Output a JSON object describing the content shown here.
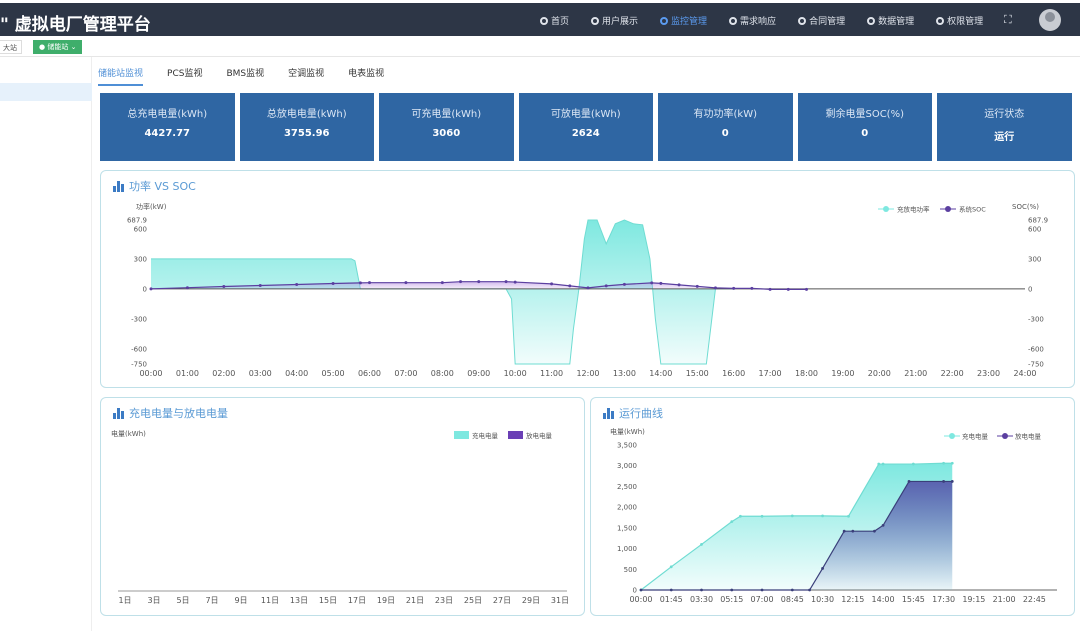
{
  "header": {
    "title": "\" 虚拟电厂管理平台",
    "nav": [
      {
        "label": "首页"
      },
      {
        "label": "用户展示"
      },
      {
        "label": "监控管理",
        "active": true
      },
      {
        "label": "需求响应"
      },
      {
        "label": "合同管理"
      },
      {
        "label": "数据管理"
      },
      {
        "label": "权限管理"
      }
    ],
    "fullscreen_icon": "expand-icon"
  },
  "tagbar": {
    "station_select": "大站",
    "station_tag": "储能站"
  },
  "tabs": [
    {
      "label": "储能站监视",
      "active": true
    },
    {
      "label": "PCS监视"
    },
    {
      "label": "BMS监视"
    },
    {
      "label": "空调监视"
    },
    {
      "label": "电表监视"
    }
  ],
  "cards": [
    {
      "label": "总充电电量(kWh)",
      "value": "4427.77"
    },
    {
      "label": "总放电电量(kWh)",
      "value": "3755.96"
    },
    {
      "label": "可充电量(kWh)",
      "value": "3060"
    },
    {
      "label": "可放电量(kWh)",
      "value": "2624"
    },
    {
      "label": "有功功率(kW)",
      "value": "0"
    },
    {
      "label": "剩余电量SOC(%)",
      "value": "0"
    },
    {
      "label": "运行状态",
      "value": "运行"
    }
  ],
  "colors": {
    "header": "#2d3646",
    "card": "#2f66a3",
    "charge": "#7ee8e0",
    "discharge": "#5b3fa0",
    "accent": "#5a9ad4"
  },
  "chart_data": [
    {
      "title": "功率 VS SOC",
      "type": "area",
      "ylabel_left": "功率(kW)",
      "ylabel_right": "SOC(%)",
      "ylim": [
        -750,
        687.9
      ],
      "yticks": [
        "687.9",
        "600",
        "300",
        "0",
        "-300",
        "-600",
        "-750"
      ],
      "xticks": [
        "00:00",
        "01:00",
        "02:00",
        "03:00",
        "04:00",
        "05:00",
        "06:00",
        "07:00",
        "08:00",
        "09:00",
        "10:00",
        "11:00",
        "12:00",
        "13:00",
        "14:00",
        "15:00",
        "16:00",
        "17:00",
        "18:00",
        "19:00",
        "20:00",
        "21:00",
        "22:00",
        "23:00",
        "24:00"
      ],
      "legend": [
        "充放电功率",
        "系统SOC"
      ],
      "legend_position": "top-right",
      "series": [
        {
          "name": "充放电功率",
          "x_hours": [
            0,
            5.5,
            5.6,
            5.75,
            9.75,
            9.9,
            10,
            11.5,
            11.6,
            11.75,
            11.9,
            12,
            12.25,
            12.5,
            12.75,
            13,
            13.25,
            13.5,
            13.7,
            13.85,
            14,
            15,
            15.25,
            15.4,
            15.5,
            16
          ],
          "values": [
            300,
            300,
            280,
            0,
            0,
            -100,
            -750,
            -750,
            -400,
            0,
            500,
            687.9,
            687.9,
            450,
            650,
            687.9,
            650,
            640,
            300,
            -300,
            -750,
            -750,
            -750,
            -300,
            0,
            0
          ]
        },
        {
          "name": "系统SOC",
          "x_hours": [
            0,
            1,
            2,
            3,
            4,
            5,
            5.75,
            6,
            7,
            8,
            8.5,
            9,
            9.75,
            10,
            11,
            11.5,
            12,
            12.5,
            13,
            13.75,
            14,
            14.5,
            15,
            15.5,
            16,
            16.5,
            17,
            17.5,
            18
          ],
          "values": [
            0,
            12,
            24,
            34,
            44,
            54,
            60,
            62,
            62,
            62,
            72,
            72,
            72,
            68,
            50,
            30,
            10,
            30,
            45,
            60,
            55,
            40,
            25,
            10,
            5,
            5,
            -5,
            -5,
            -5
          ]
        }
      ]
    },
    {
      "title": "充电电量与放电电量",
      "type": "bar",
      "ylabel": "电量(kWh)",
      "legend": [
        "充电电量",
        "放电电量"
      ],
      "legend_position": "top-right",
      "xticks": [
        "1日",
        "3日",
        "5日",
        "7日",
        "9日",
        "11日",
        "13日",
        "15日",
        "17日",
        "19日",
        "21日",
        "23日",
        "25日",
        "27日",
        "29日",
        "31日"
      ],
      "series": []
    },
    {
      "title": "运行曲线",
      "type": "area",
      "ylabel": "电量(kWh)",
      "ylim": [
        0,
        3500
      ],
      "yticks": [
        "3,500",
        "3,000",
        "2,500",
        "2,000",
        "1,500",
        "1,000",
        "500",
        "0"
      ],
      "xticks": [
        "00:00",
        "01:45",
        "03:30",
        "05:15",
        "07:00",
        "08:45",
        "10:30",
        "12:15",
        "14:00",
        "15:45",
        "17:30",
        "19:15",
        "21:00",
        "22:45"
      ],
      "legend": [
        "充电电量",
        "放电电量"
      ],
      "legend_position": "top-right",
      "series": [
        {
          "name": "充电电量",
          "x_hours": [
            0,
            1.75,
            3.5,
            5.25,
            5.75,
            7,
            8.75,
            10.5,
            12,
            13.75,
            14,
            15.75,
            17.5,
            18
          ],
          "values": [
            0,
            560,
            1100,
            1650,
            1780,
            1780,
            1790,
            1790,
            1780,
            3040,
            3040,
            3040,
            3060,
            3060
          ]
        },
        {
          "name": "放电电量",
          "x_hours": [
            0,
            1.75,
            3.5,
            5.25,
            7,
            8.75,
            9.75,
            10.5,
            11.75,
            12.25,
            13.5,
            14,
            15.5,
            17.5,
            18
          ],
          "values": [
            0,
            0,
            0,
            0,
            0,
            0,
            0,
            520,
            1420,
            1420,
            1420,
            1560,
            2620,
            2620,
            2620
          ]
        }
      ]
    }
  ]
}
